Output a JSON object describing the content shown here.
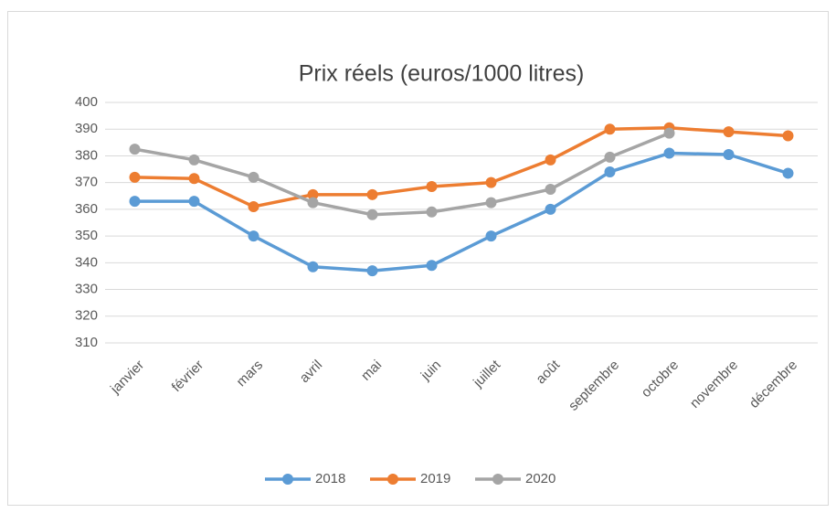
{
  "chart_data": {
    "type": "line",
    "title": "Prix réels (euros/1000 litres)",
    "categories": [
      "janvier",
      "février",
      "mars",
      "avril",
      "mai",
      "juin",
      "juillet",
      "août",
      "septembre",
      "octobre",
      "novembre",
      "décembre"
    ],
    "series": [
      {
        "name": "2018",
        "color": "#5b9bd5",
        "values": [
          363,
          363,
          350,
          338.5,
          337,
          339,
          350,
          360,
          374,
          381,
          380.5,
          373.5
        ]
      },
      {
        "name": "2019",
        "color": "#ed7d31",
        "values": [
          372,
          371.5,
          361,
          365.5,
          365.5,
          368.5,
          370,
          378.5,
          390,
          390.5,
          389,
          387.5
        ]
      },
      {
        "name": "2020",
        "color": "#a5a5a5",
        "values": [
          382.5,
          378.5,
          372,
          362.5,
          358,
          359,
          362.5,
          367.5,
          379.5,
          388.5,
          null,
          null
        ]
      }
    ],
    "ylim": [
      310,
      400
    ],
    "yticks": [
      310,
      320,
      330,
      340,
      350,
      360,
      370,
      380,
      390,
      400
    ],
    "grid": true,
    "legend": "bottom"
  }
}
